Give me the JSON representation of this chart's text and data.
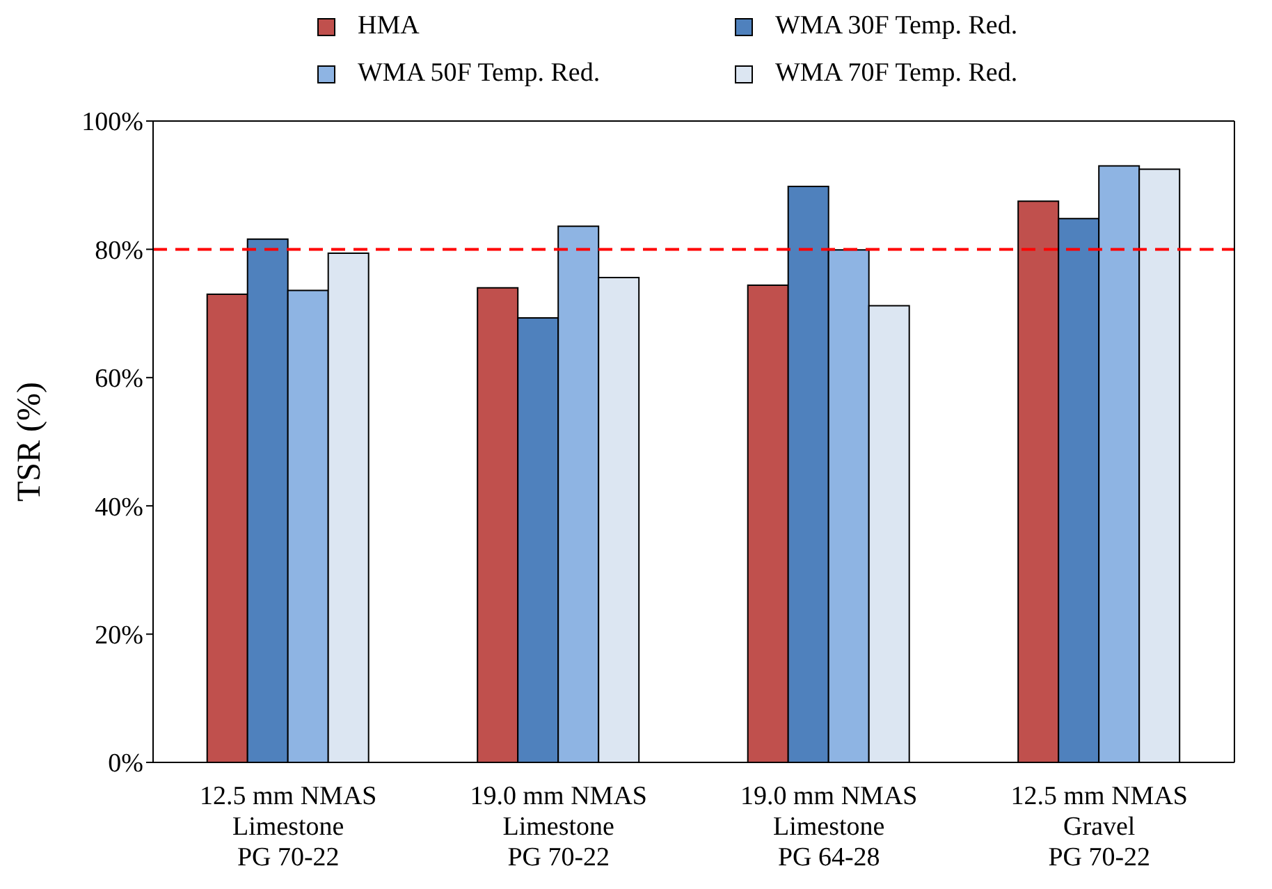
{
  "chart_data": {
    "type": "bar",
    "ylabel": "TSR (%)",
    "categories": [
      "12.5 mm NMAS\nLimestone\nPG 70-22",
      "19.0 mm NMAS\nLimestone\nPG 70-22",
      "19.0 mm NMAS\nLimestone\nPG 64-28",
      "12.5 mm NMAS\nGravel\nPG 70-22"
    ],
    "series": [
      {
        "name": "HMA",
        "color": "#c0504d",
        "values": [
          73,
          74,
          74.4,
          87.5
        ]
      },
      {
        "name": "WMA 30F Temp. Red.",
        "color": "#4f81bd",
        "values": [
          81.6,
          69.3,
          89.8,
          84.8
        ]
      },
      {
        "name": "WMA 50F Temp. Red.",
        "color": "#8eb4e3",
        "values": [
          73.6,
          83.6,
          79.9,
          93
        ]
      },
      {
        "name": "WMA 70F Temp. Red.",
        "color": "#dce6f2",
        "values": [
          79.4,
          75.6,
          71.2,
          92.5
        ]
      }
    ],
    "ylim": [
      0,
      100
    ],
    "yticks": [
      {
        "value": 0,
        "label": "0%"
      },
      {
        "value": 20,
        "label": "20%"
      },
      {
        "value": 40,
        "label": "40%"
      },
      {
        "value": 60,
        "label": "60%"
      },
      {
        "value": 80,
        "label": "80%"
      },
      {
        "value": 100,
        "label": "100%"
      }
    ],
    "ref_lines": [
      {
        "axis": "y",
        "value": 80,
        "color": "#ff0000",
        "line_style": "dashed"
      }
    ],
    "legend": "top",
    "grid": false
  }
}
